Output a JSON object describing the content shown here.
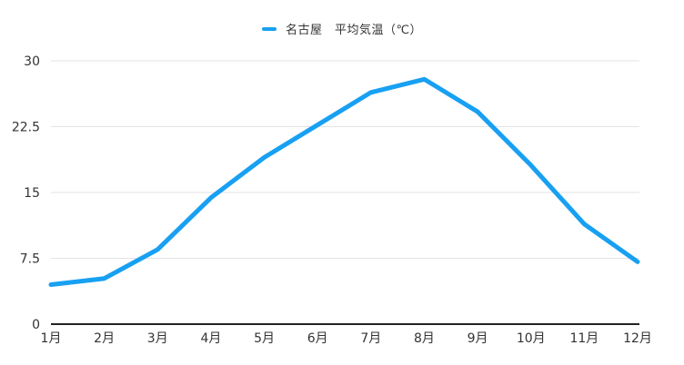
{
  "legend": {
    "label": "名古屋　平均気温（℃）"
  },
  "colors": {
    "line": "#18a0f2",
    "grid": "#e3e3e3",
    "axis": "#222222",
    "tick_text": "#333333",
    "background": "#ffffff"
  },
  "chart_data": {
    "type": "line",
    "title": "名古屋　平均気温（℃）",
    "series": [
      {
        "name": "名古屋 平均気温（℃）",
        "values": [
          4.5,
          5.2,
          8.5,
          14.4,
          19.0,
          22.7,
          26.4,
          27.9,
          24.2,
          18.1,
          11.4,
          7.1
        ]
      }
    ],
    "categories": [
      "1月",
      "2月",
      "3月",
      "4月",
      "5月",
      "6月",
      "7月",
      "8月",
      "9月",
      "10月",
      "11月",
      "12月"
    ],
    "xlabel": "",
    "ylabel": "",
    "ylim": [
      0,
      30
    ],
    "yticks": [
      {
        "value": 0,
        "label": "0"
      },
      {
        "value": 7.5,
        "label": "7.5"
      },
      {
        "value": 15,
        "label": "15"
      },
      {
        "value": 22.5,
        "label": "22.5"
      },
      {
        "value": 30,
        "label": "30"
      }
    ],
    "grid": "horizontal-only",
    "legend_position": "top",
    "line_color": "#18a0f2"
  }
}
